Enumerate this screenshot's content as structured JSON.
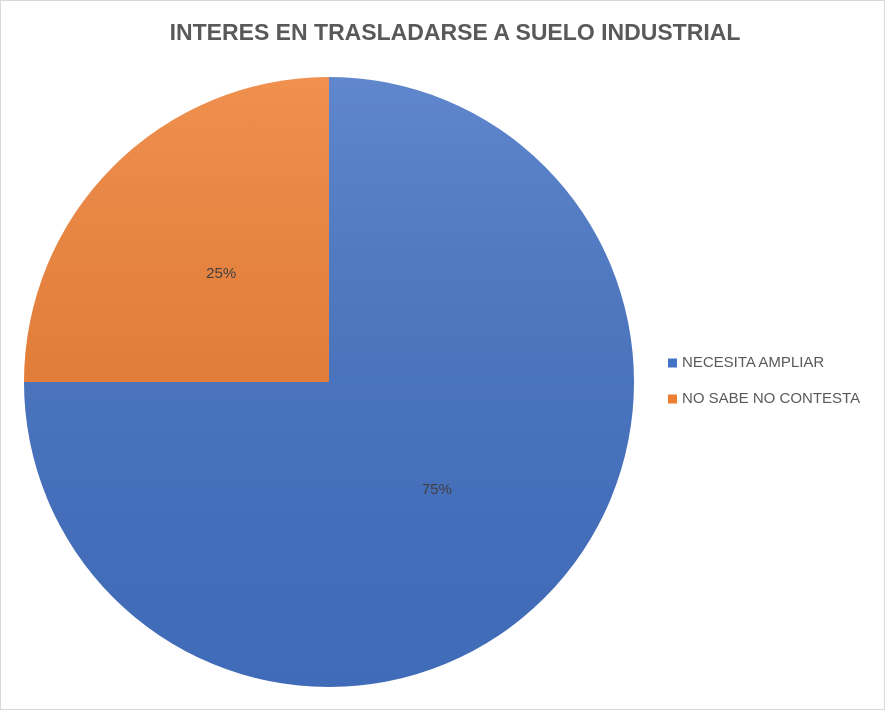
{
  "chart_data": {
    "type": "pie",
    "title": "INTERES EN TRASLADARSE A SUELO INDUSTRIAL",
    "categories": [
      "NECESITA AMPLIAR",
      "NO SABE NO CONTESTA"
    ],
    "values": [
      75,
      25
    ],
    "value_labels": [
      "75%",
      "25%"
    ],
    "colors": [
      "#4472c4",
      "#ed7d31"
    ],
    "legend": "right"
  }
}
